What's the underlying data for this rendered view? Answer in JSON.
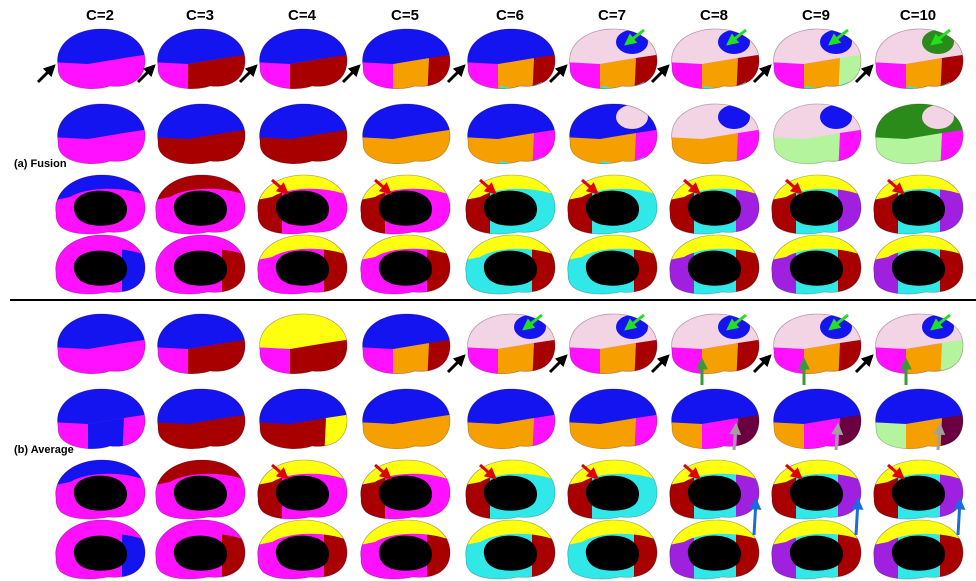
{
  "columns": [
    "C=2",
    "C=3",
    "C=4",
    "C=5",
    "C=6",
    "C=7",
    "C=8",
    "C=9",
    "C=10"
  ],
  "sections": [
    {
      "label": "(a) Fusion"
    },
    {
      "label": "(b) Average"
    }
  ]
}
